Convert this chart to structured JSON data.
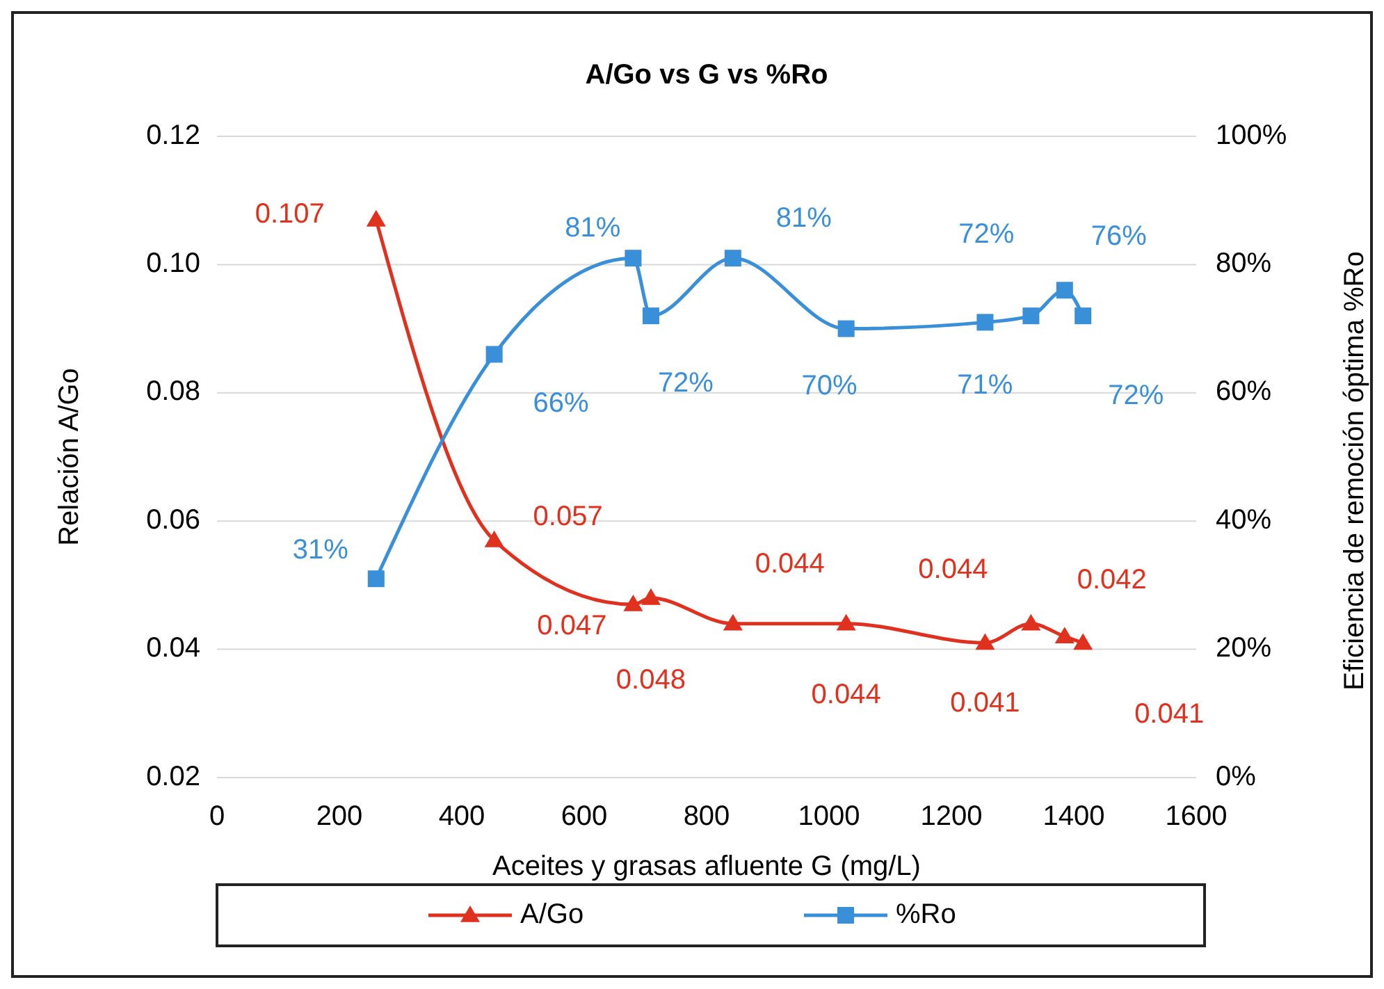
{
  "chart_data": {
    "type": "line",
    "title": "A/Go vs G vs %Ro",
    "xlabel": "Aceites y grasas afluente G (mg/L)",
    "ylabel": "Relación A/Go",
    "y2label": "Eficiencia de remoción óptima %Ro",
    "x": [
      260,
      453,
      680,
      709,
      843,
      1028,
      1255,
      1330,
      1385,
      1415
    ],
    "xlim": [
      0,
      1600
    ],
    "xticks": [
      0,
      200,
      400,
      600,
      800,
      1000,
      1200,
      1400,
      1600
    ],
    "ylim": [
      0.02,
      0.12
    ],
    "yticks": [
      0.02,
      0.04,
      0.06,
      0.08,
      {
        "value": 0.1,
        "label": "0.10"
      },
      0.12
    ],
    "y2lim": [
      0,
      100
    ],
    "y2ticks": [
      {
        "value": 0,
        "label": "0%"
      },
      {
        "value": 20,
        "label": "20%"
      },
      {
        "value": 40,
        "label": "40%"
      },
      {
        "value": 60,
        "label": "60%"
      },
      {
        "value": 80,
        "label": "80%"
      },
      {
        "value": 100,
        "label": "100%"
      }
    ],
    "series": [
      {
        "name": "A/Go",
        "color": "#e0301e",
        "marker": "triangle",
        "values": [
          0.107,
          0.057,
          0.047,
          0.048,
          0.044,
          0.044,
          0.041,
          0.044,
          0.042,
          0.041
        ],
        "value_labels": [
          "0.107",
          "0.057",
          "0.047",
          "0.048",
          "0.044",
          "0.044",
          "0.041",
          "0.044",
          "0.042",
          "0.041"
        ]
      },
      {
        "name": "%Ro",
        "color": "#3a8fd9",
        "marker": "square",
        "axis": "y2",
        "values": [
          31,
          66,
          81,
          72,
          81,
          70,
          71,
          72,
          76,
          72
        ],
        "value_labels": [
          "31%",
          "66%",
          "81%",
          "72%",
          "81%",
          "70%",
          "71%",
          "72%",
          "76%",
          "72%"
        ]
      }
    ],
    "grid": "y",
    "legend": "bottom",
    "line_style": "solid"
  }
}
